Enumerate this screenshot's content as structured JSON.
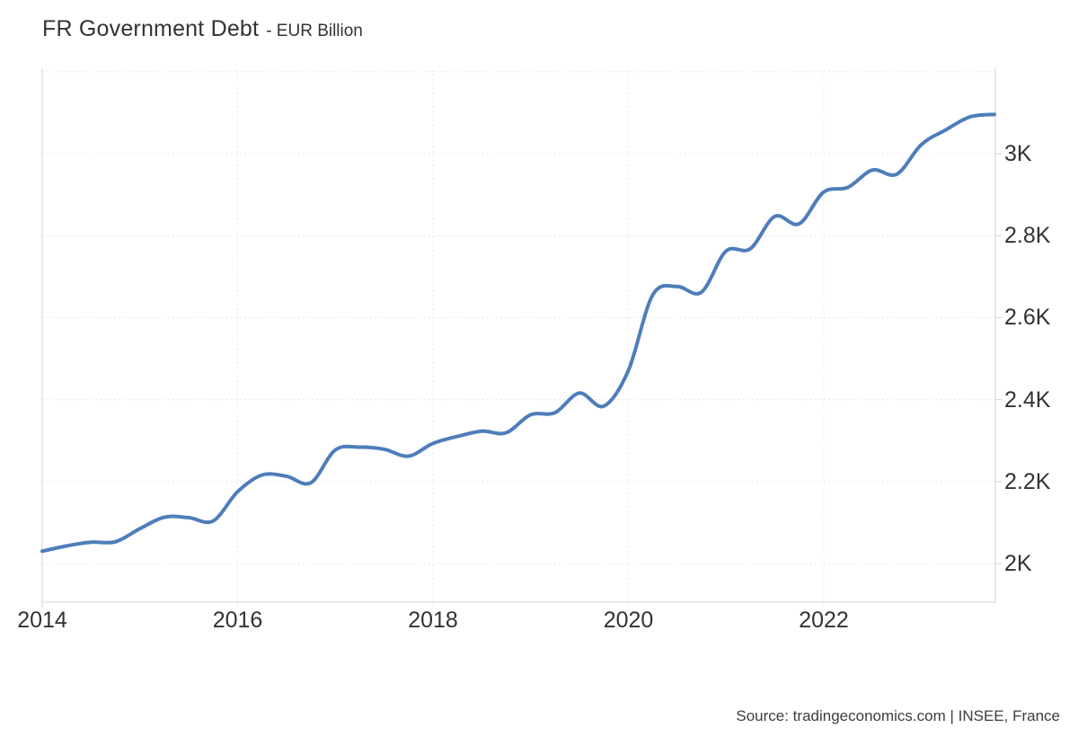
{
  "page": {
    "title_main": "FR Government Debt",
    "title_sub": "- EUR Billion",
    "source": "Source: tradingeconomics.com | INSEE, France"
  },
  "colors": {
    "line": "#4e7dba",
    "grid": "#e1e1e1",
    "axis": "#d6d6d6",
    "text": "#333333",
    "source_text": "#3d3d3d",
    "background": "#ffffff"
  },
  "chart_data": {
    "type": "line",
    "title": "FR Government Debt - EUR Billion",
    "xlabel": "",
    "ylabel": "EUR Billion",
    "series_name": "FR Government Debt",
    "x_periods": [
      "2014 Q1",
      "2014 Q2",
      "2014 Q3",
      "2014 Q4",
      "2015 Q1",
      "2015 Q2",
      "2015 Q3",
      "2015 Q4",
      "2016 Q1",
      "2016 Q2",
      "2016 Q3",
      "2016 Q4",
      "2017 Q1",
      "2017 Q2",
      "2017 Q3",
      "2017 Q4",
      "2018 Q1",
      "2018 Q2",
      "2018 Q3",
      "2018 Q4",
      "2019 Q1",
      "2019 Q2",
      "2019 Q3",
      "2019 Q4",
      "2020 Q1",
      "2020 Q2",
      "2020 Q3",
      "2020 Q4",
      "2021 Q1",
      "2021 Q2",
      "2021 Q3",
      "2021 Q4",
      "2022 Q1",
      "2022 Q2",
      "2022 Q3",
      "2022 Q4",
      "2023 Q1",
      "2023 Q2",
      "2023 Q3",
      "2023 Q4"
    ],
    "values": [
      2030,
      2043,
      2052,
      2053,
      2085,
      2113,
      2112,
      2104,
      2175,
      2216,
      2213,
      2197,
      2277,
      2284,
      2279,
      2262,
      2293,
      2310,
      2323,
      2319,
      2363,
      2368,
      2416,
      2384,
      2470,
      2655,
      2676,
      2662,
      2762,
      2768,
      2847,
      2829,
      2906,
      2918,
      2960,
      2950,
      3022,
      3058,
      3090,
      3096
    ],
    "x_ticks": [
      {
        "label": "2014",
        "year": 2014
      },
      {
        "label": "2016",
        "year": 2016
      },
      {
        "label": "2018",
        "year": 2018
      },
      {
        "label": "2020",
        "year": 2020
      },
      {
        "label": "2022",
        "year": 2022
      }
    ],
    "y_ticks": [
      {
        "label": "3K",
        "value": 3000
      },
      {
        "label": "2.8K",
        "value": 2800
      },
      {
        "label": "2.6K",
        "value": 2600
      },
      {
        "label": "2.4K",
        "value": 2400
      },
      {
        "label": "2.2K",
        "value": 2200
      },
      {
        "label": "2K",
        "value": 2000
      }
    ],
    "unlabeled_grid_values": [
      3200
    ],
    "ylim": [
      1906,
      3210
    ],
    "xlim_years": [
      2014,
      2023.77
    ],
    "grid": "dotted",
    "legend": "none",
    "y_axis_side": "right"
  }
}
